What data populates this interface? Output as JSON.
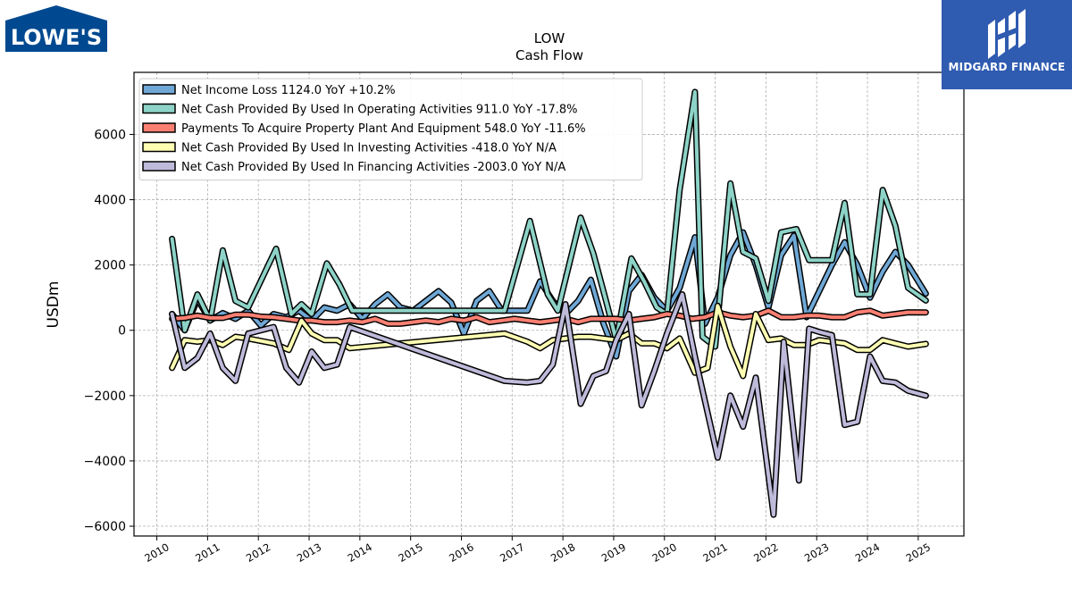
{
  "brand": {
    "left_logo": "LOWE'S",
    "right_logo": "MIDGARD FINANCE",
    "lowes_blue": "#004990",
    "midgard_blue": "#2f5bb0"
  },
  "chart_data": {
    "type": "line",
    "title": "LOW",
    "subtitle": "Cash Flow",
    "xlabel": "",
    "ylabel": "USDm",
    "xlim": [
      2009.55,
      2025.9
    ],
    "ylim": [
      -6300,
      7900
    ],
    "x_ticks": [
      2010,
      2011,
      2012,
      2013,
      2014,
      2015,
      2016,
      2017,
      2018,
      2019,
      2020,
      2021,
      2022,
      2023,
      2024,
      2025
    ],
    "x_tick_labels": [
      "2010",
      "2011",
      "2012",
      "2013",
      "2014",
      "2015",
      "2016",
      "2017",
      "2018",
      "2019",
      "2020",
      "2021",
      "2022",
      "2023",
      "2024",
      "2025"
    ],
    "y_ticks": [
      -6000,
      -4000,
      -2000,
      0,
      2000,
      4000,
      6000
    ],
    "y_tick_labels": [
      "−6000",
      "−4000",
      "−2000",
      "0",
      "2000",
      "4000",
      "6000"
    ],
    "grid": true,
    "legend_position": "top-left",
    "series": [
      {
        "name": "Net Income Loss  1124.0 YoY +10.2%",
        "color": "#6fa8d6",
        "points": [
          [
            2010.3,
            500
          ],
          [
            2010.55,
            0
          ],
          [
            2010.8,
            950
          ],
          [
            2011.05,
            300
          ],
          [
            2011.3,
            530
          ],
          [
            2011.55,
            350
          ],
          [
            2011.8,
            600
          ],
          [
            2012.05,
            150
          ],
          [
            2012.3,
            500
          ],
          [
            2012.55,
            400
          ],
          [
            2012.8,
            600
          ],
          [
            2013.05,
            300
          ],
          [
            2013.3,
            700
          ],
          [
            2013.55,
            600
          ],
          [
            2013.8,
            800
          ],
          [
            2014.05,
            350
          ],
          [
            2014.3,
            800
          ],
          [
            2014.55,
            1100
          ],
          [
            2014.8,
            700
          ],
          [
            2015.05,
            600
          ],
          [
            2015.3,
            900
          ],
          [
            2015.55,
            1200
          ],
          [
            2015.8,
            850
          ],
          [
            2016.05,
            -100
          ],
          [
            2016.3,
            900
          ],
          [
            2016.55,
            1200
          ],
          [
            2016.8,
            600
          ],
          [
            2017.3,
            600
          ],
          [
            2017.55,
            1500
          ],
          [
            2017.8,
            900
          ],
          [
            2018.05,
            500
          ],
          [
            2018.3,
            900
          ],
          [
            2018.55,
            1550
          ],
          [
            2018.8,
            200
          ],
          [
            2019.05,
            -800
          ],
          [
            2019.3,
            1200
          ],
          [
            2019.55,
            1700
          ],
          [
            2019.8,
            1000
          ],
          [
            2020.05,
            600
          ],
          [
            2020.3,
            1300
          ],
          [
            2020.6,
            2850
          ],
          [
            2020.8,
            200
          ],
          [
            2021.05,
            1000
          ],
          [
            2021.3,
            2300
          ],
          [
            2021.55,
            3000
          ],
          [
            2021.8,
            2000
          ],
          [
            2022.05,
            700
          ],
          [
            2022.3,
            2300
          ],
          [
            2022.55,
            2900
          ],
          [
            2022.8,
            400
          ],
          [
            2023.05,
            1200
          ],
          [
            2023.3,
            2000
          ],
          [
            2023.55,
            2700
          ],
          [
            2023.8,
            2000
          ],
          [
            2024.05,
            1000
          ],
          [
            2024.3,
            1800
          ],
          [
            2024.55,
            2400
          ],
          [
            2024.8,
            2000
          ],
          [
            2025.15,
            1124
          ]
        ]
      },
      {
        "name": "Net Cash Provided By Used In Operating Activities  911.0 YoY -17.8%",
        "color": "#8dd3c7",
        "points": [
          [
            2010.3,
            2800
          ],
          [
            2010.55,
            0
          ],
          [
            2010.8,
            1100
          ],
          [
            2011.05,
            300
          ],
          [
            2011.3,
            2450
          ],
          [
            2011.55,
            900
          ],
          [
            2011.8,
            700
          ],
          [
            2012.35,
            2500
          ],
          [
            2012.65,
            500
          ],
          [
            2012.85,
            800
          ],
          [
            2013.05,
            500
          ],
          [
            2013.35,
            2050
          ],
          [
            2013.6,
            1400
          ],
          [
            2013.85,
            600
          ],
          [
            2016.85,
            600
          ],
          [
            2017.35,
            3350
          ],
          [
            2017.7,
            1100
          ],
          [
            2017.9,
            600
          ],
          [
            2018.35,
            3450
          ],
          [
            2018.6,
            2350
          ],
          [
            2018.85,
            900
          ],
          [
            2019.05,
            -300
          ],
          [
            2019.35,
            2200
          ],
          [
            2019.6,
            1500
          ],
          [
            2019.85,
            700
          ],
          [
            2020.05,
            500
          ],
          [
            2020.3,
            4300
          ],
          [
            2020.6,
            7300
          ],
          [
            2020.75,
            -200
          ],
          [
            2021.0,
            -500
          ],
          [
            2021.3,
            4500
          ],
          [
            2021.55,
            2400
          ],
          [
            2021.8,
            2200
          ],
          [
            2022.05,
            900
          ],
          [
            2022.3,
            3000
          ],
          [
            2022.6,
            3100
          ],
          [
            2022.85,
            2150
          ],
          [
            2023.3,
            2150
          ],
          [
            2023.55,
            3900
          ],
          [
            2023.8,
            1100
          ],
          [
            2024.05,
            1100
          ],
          [
            2024.3,
            4300
          ],
          [
            2024.55,
            3200
          ],
          [
            2024.8,
            1300
          ],
          [
            2025.15,
            911
          ]
        ]
      },
      {
        "name": "Payments To Acquire Property Plant And Equipment  548.0 YoY -11.6%",
        "color": "#fb8072",
        "points": [
          [
            2010.3,
            350
          ],
          [
            2010.55,
            380
          ],
          [
            2010.8,
            450
          ],
          [
            2011.05,
            380
          ],
          [
            2011.3,
            380
          ],
          [
            2011.55,
            480
          ],
          [
            2011.8,
            480
          ],
          [
            2012.05,
            420
          ],
          [
            2012.3,
            400
          ],
          [
            2012.55,
            350
          ],
          [
            2012.8,
            300
          ],
          [
            2013.05,
            300
          ],
          [
            2013.3,
            250
          ],
          [
            2013.55,
            250
          ],
          [
            2013.8,
            300
          ],
          [
            2014.05,
            250
          ],
          [
            2014.3,
            350
          ],
          [
            2014.55,
            200
          ],
          [
            2014.8,
            200
          ],
          [
            2015.05,
            250
          ],
          [
            2015.3,
            300
          ],
          [
            2015.55,
            250
          ],
          [
            2015.8,
            350
          ],
          [
            2016.05,
            300
          ],
          [
            2016.3,
            400
          ],
          [
            2016.55,
            250
          ],
          [
            2016.8,
            300
          ],
          [
            2017.05,
            350
          ],
          [
            2017.3,
            300
          ],
          [
            2017.55,
            250
          ],
          [
            2017.8,
            300
          ],
          [
            2018.05,
            350
          ],
          [
            2018.3,
            250
          ],
          [
            2018.55,
            350
          ],
          [
            2018.8,
            350
          ],
          [
            2019.05,
            350
          ],
          [
            2019.3,
            300
          ],
          [
            2019.55,
            350
          ],
          [
            2019.8,
            400
          ],
          [
            2020.05,
            500
          ],
          [
            2020.3,
            450
          ],
          [
            2020.55,
            350
          ],
          [
            2020.8,
            400
          ],
          [
            2021.05,
            550
          ],
          [
            2021.3,
            450
          ],
          [
            2021.55,
            400
          ],
          [
            2021.8,
            450
          ],
          [
            2022.05,
            600
          ],
          [
            2022.3,
            400
          ],
          [
            2022.55,
            400
          ],
          [
            2022.8,
            450
          ],
          [
            2023.05,
            450
          ],
          [
            2023.3,
            400
          ],
          [
            2023.55,
            400
          ],
          [
            2023.8,
            550
          ],
          [
            2024.05,
            600
          ],
          [
            2024.3,
            450
          ],
          [
            2024.55,
            500
          ],
          [
            2024.8,
            550
          ],
          [
            2025.15,
            548
          ]
        ]
      },
      {
        "name": "Net Cash Provided By Used In Investing Activities  -418.0 YoY N/A",
        "color": "#ffffb3",
        "points": [
          [
            2010.3,
            -1150
          ],
          [
            2010.55,
            -300
          ],
          [
            2010.8,
            -350
          ],
          [
            2011.05,
            -300
          ],
          [
            2011.3,
            -450
          ],
          [
            2011.55,
            -200
          ],
          [
            2011.8,
            -250
          ],
          [
            2012.3,
            -400
          ],
          [
            2012.6,
            -600
          ],
          [
            2012.85,
            300
          ],
          [
            2013.05,
            -100
          ],
          [
            2013.3,
            -300
          ],
          [
            2013.55,
            -300
          ],
          [
            2013.8,
            -550
          ],
          [
            2016.85,
            -100
          ],
          [
            2017.3,
            -350
          ],
          [
            2017.55,
            -550
          ],
          [
            2017.8,
            -300
          ],
          [
            2018.05,
            -250
          ],
          [
            2018.3,
            -200
          ],
          [
            2018.55,
            -200
          ],
          [
            2018.8,
            -250
          ],
          [
            2019.05,
            -300
          ],
          [
            2019.3,
            -100
          ],
          [
            2019.55,
            -400
          ],
          [
            2019.8,
            -400
          ],
          [
            2020.05,
            -550
          ],
          [
            2020.3,
            -250
          ],
          [
            2020.6,
            -1300
          ],
          [
            2020.85,
            -1150
          ],
          [
            2021.05,
            750
          ],
          [
            2021.3,
            -500
          ],
          [
            2021.55,
            -1400
          ],
          [
            2021.8,
            500
          ],
          [
            2022.05,
            -300
          ],
          [
            2022.3,
            -250
          ],
          [
            2022.55,
            -450
          ],
          [
            2022.8,
            -450
          ],
          [
            2023.05,
            -300
          ],
          [
            2023.3,
            -350
          ],
          [
            2023.55,
            -400
          ],
          [
            2023.8,
            -600
          ],
          [
            2024.05,
            -600
          ],
          [
            2024.3,
            -300
          ],
          [
            2024.55,
            -400
          ],
          [
            2024.8,
            -500
          ],
          [
            2025.15,
            -418
          ]
        ]
      },
      {
        "name": "Net Cash Provided By Used In Financing Activities  -2003.0 YoY N/A",
        "color": "#bebada",
        "points": [
          [
            2010.3,
            500
          ],
          [
            2010.55,
            -1150
          ],
          [
            2010.8,
            -850
          ],
          [
            2011.05,
            -100
          ],
          [
            2011.3,
            -1150
          ],
          [
            2011.55,
            -1550
          ],
          [
            2011.8,
            -100
          ],
          [
            2012.3,
            100
          ],
          [
            2012.55,
            -1150
          ],
          [
            2012.8,
            -1600
          ],
          [
            2013.05,
            -650
          ],
          [
            2013.3,
            -1150
          ],
          [
            2013.55,
            -1050
          ],
          [
            2013.8,
            100
          ],
          [
            2016.85,
            -1550
          ],
          [
            2017.3,
            -1600
          ],
          [
            2017.55,
            -1550
          ],
          [
            2017.8,
            -1050
          ],
          [
            2018.05,
            800
          ],
          [
            2018.35,
            -2250
          ],
          [
            2018.6,
            -1400
          ],
          [
            2018.85,
            -1250
          ],
          [
            2019.05,
            -300
          ],
          [
            2019.3,
            500
          ],
          [
            2019.55,
            -2300
          ],
          [
            2019.8,
            -1250
          ],
          [
            2020.05,
            -100
          ],
          [
            2020.35,
            1100
          ],
          [
            2020.6,
            -800
          ],
          [
            2021.05,
            -3900
          ],
          [
            2021.3,
            -2000
          ],
          [
            2021.55,
            -2950
          ],
          [
            2021.8,
            -1450
          ],
          [
            2022.15,
            -5650
          ],
          [
            2022.35,
            -350
          ],
          [
            2022.65,
            -4600
          ],
          [
            2022.85,
            50
          ],
          [
            2023.05,
            -50
          ],
          [
            2023.3,
            -150
          ],
          [
            2023.55,
            -2900
          ],
          [
            2023.8,
            -2800
          ],
          [
            2024.05,
            -800
          ],
          [
            2024.3,
            -1550
          ],
          [
            2024.55,
            -1600
          ],
          [
            2024.8,
            -1850
          ],
          [
            2025.15,
            -2003
          ]
        ]
      }
    ]
  }
}
